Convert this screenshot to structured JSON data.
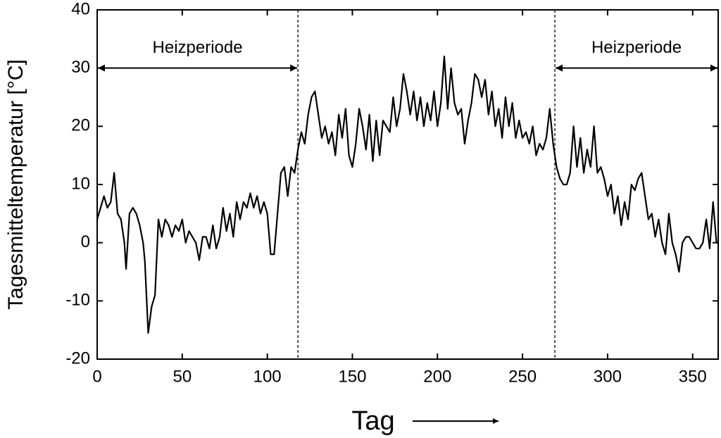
{
  "chart_data": {
    "type": "line",
    "y_label": "Tagesmitteltemperatur [°C]",
    "x_label": "Tag",
    "xlim": [
      0,
      365
    ],
    "ylim": [
      -20,
      40
    ],
    "xticks": [
      0,
      50,
      100,
      150,
      200,
      250,
      300,
      350
    ],
    "yticks": [
      -20,
      -10,
      0,
      10,
      20,
      30,
      40
    ],
    "vlines": [
      118,
      269
    ],
    "annotations": [
      {
        "text": "Heizperiode",
        "x1": 0,
        "x2": 118,
        "y": 30
      },
      {
        "text": "Heizperiode",
        "x1": 269,
        "x2": 365,
        "y": 30
      }
    ],
    "color": "#000000",
    "x": [
      0,
      2,
      4,
      6,
      8,
      10,
      12,
      14,
      16,
      17,
      19,
      21,
      23,
      25,
      27,
      28,
      30,
      32,
      34,
      36,
      38,
      40,
      42,
      44,
      46,
      48,
      50,
      52,
      54,
      56,
      58,
      60,
      62,
      64,
      66,
      68,
      70,
      72,
      74,
      76,
      78,
      80,
      82,
      84,
      86,
      88,
      90,
      92,
      94,
      96,
      98,
      100,
      102,
      104,
      106,
      108,
      110,
      112,
      114,
      116,
      118,
      120,
      122,
      124,
      126,
      128,
      130,
      132,
      134,
      136,
      138,
      140,
      142,
      144,
      146,
      148,
      150,
      152,
      154,
      156,
      158,
      160,
      162,
      164,
      166,
      168,
      170,
      172,
      174,
      176,
      178,
      180,
      182,
      184,
      186,
      188,
      190,
      192,
      194,
      196,
      198,
      200,
      202,
      204,
      206,
      208,
      210,
      212,
      214,
      216,
      218,
      220,
      222,
      224,
      226,
      228,
      230,
      232,
      234,
      236,
      238,
      240,
      242,
      244,
      246,
      248,
      250,
      252,
      254,
      256,
      258,
      260,
      262,
      264,
      266,
      268,
      270,
      272,
      274,
      276,
      278,
      280,
      282,
      284,
      286,
      288,
      290,
      292,
      294,
      296,
      298,
      300,
      302,
      304,
      306,
      308,
      310,
      312,
      314,
      316,
      318,
      320,
      322,
      324,
      326,
      328,
      330,
      332,
      334,
      336,
      338,
      340,
      342,
      344,
      346,
      348,
      350,
      352,
      354,
      356,
      358,
      360,
      362,
      364,
      365
    ],
    "values": [
      4,
      6,
      8,
      6,
      7,
      12,
      5,
      4,
      0,
      -4.5,
      5,
      6,
      5,
      3,
      0,
      -3,
      -15.5,
      -11,
      -9,
      4,
      1,
      4,
      3,
      1,
      3,
      2,
      4,
      0,
      2,
      1,
      0,
      -3,
      1,
      1,
      -1,
      3,
      -1,
      1,
      6,
      2,
      5,
      1,
      7,
      4,
      7,
      6,
      8.5,
      6,
      8,
      5,
      7,
      5,
      -2,
      -2,
      5,
      12,
      13,
      8,
      13,
      12,
      16,
      19,
      17,
      22,
      25,
      26,
      22,
      18,
      20,
      17,
      19,
      15,
      22,
      18,
      23,
      15,
      13,
      17,
      23,
      20,
      16,
      22,
      14,
      21,
      15,
      21,
      20,
      19,
      25,
      20,
      23,
      29,
      26,
      22,
      26,
      21,
      25,
      20,
      24,
      21,
      26,
      20,
      24,
      32,
      23,
      30,
      24,
      22,
      23,
      17,
      21,
      24,
      29,
      28,
      25,
      28,
      22,
      26,
      20,
      23,
      18,
      25,
      20,
      24,
      18,
      21,
      18,
      19,
      17,
      20,
      15,
      17,
      16,
      18,
      23,
      17,
      13,
      11,
      10,
      10,
      12,
      20,
      13,
      18,
      12,
      16,
      13,
      20,
      12,
      13,
      11,
      8,
      10,
      5,
      8,
      3,
      7,
      4,
      10,
      9,
      11,
      12,
      8,
      4,
      5,
      1,
      4,
      0,
      -2,
      5,
      0,
      -2,
      -5,
      0,
      1,
      1,
      0,
      -1,
      -1,
      0,
      4,
      -1,
      7,
      0,
      0
    ]
  }
}
